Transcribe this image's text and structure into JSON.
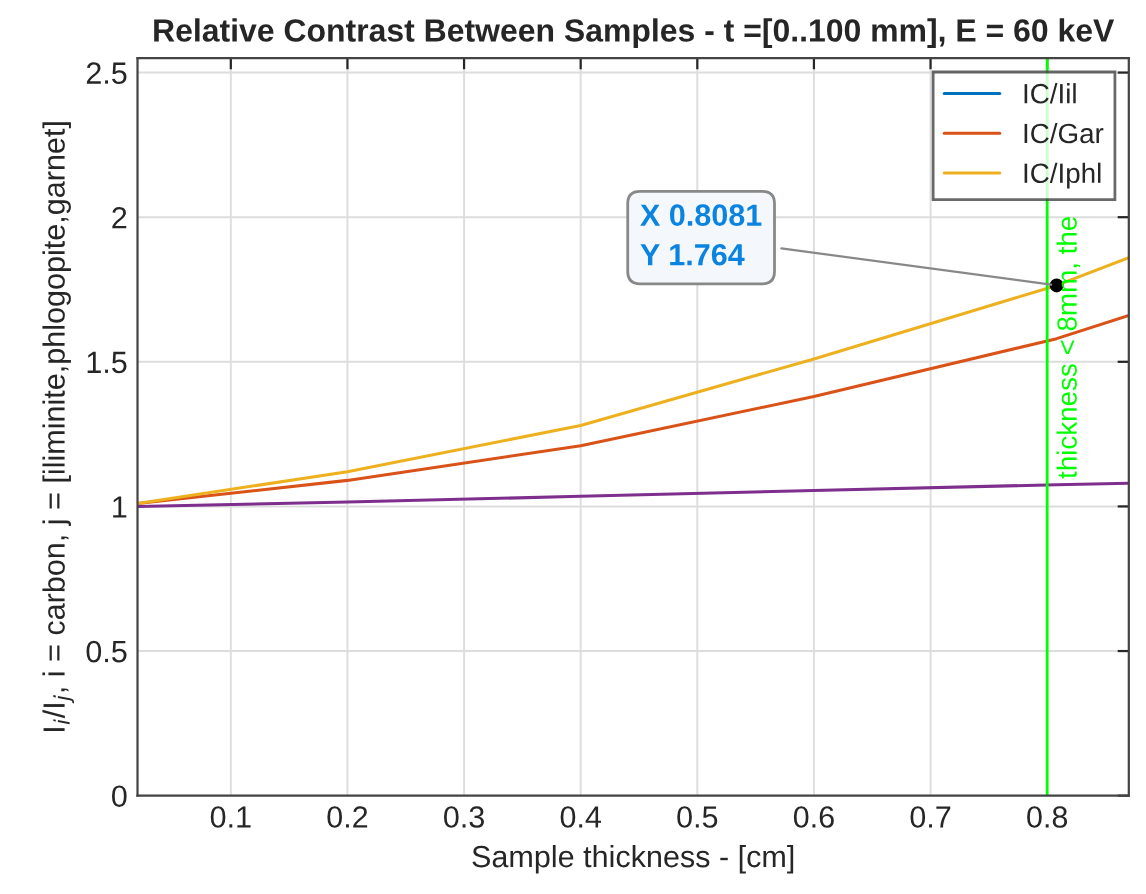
{
  "chart_data": {
    "type": "line",
    "title": "Relative Contrast Between Samples - t =[0..100 mm], E = 60 keV",
    "xlabel": "Sample thickness - [cm]",
    "ylabel": "I$_{i}$/I$_{j}$, i = carbon, j = [iliminite,phlogopite,garnet]",
    "x": [
      0.02,
      0.2,
      0.4,
      0.6,
      0.8081,
      0.87
    ],
    "series": [
      {
        "name": "IC/Iil",
        "color": "#0072bd",
        "values": [
          null,
          null,
          null,
          null,
          null,
          null
        ]
      },
      {
        "name": "IC/Gar",
        "color": "#d95319",
        "values": [
          1.01,
          1.09,
          1.21,
          1.38,
          1.58,
          1.66
        ]
      },
      {
        "name": "IC/Iphl",
        "color": "#edb120",
        "values": [
          1.01,
          1.12,
          1.28,
          1.51,
          1.764,
          1.86
        ]
      },
      {
        "color": "#7e2f8e",
        "values": [
          1.0,
          1.015,
          1.035,
          1.055,
          1.075,
          1.08
        ]
      }
    ],
    "xlim": [
      0.02,
      0.87
    ],
    "xticks": [
      0.1,
      0.2,
      0.3,
      0.4,
      0.5,
      0.6,
      0.7,
      0.8
    ],
    "ylim": [
      0,
      2.55
    ],
    "yticks": [
      0,
      0.5,
      1,
      1.5,
      2,
      2.5
    ],
    "ref_lines": [
      {
        "axis": "x",
        "value": 0.8,
        "label": "thickness < 8mm, the",
        "color": "#00ff00"
      }
    ],
    "annotations": [
      {
        "text": "X 0.8081\nY 1.764",
        "x": 0.8081,
        "y": 1.764
      }
    ],
    "grid": true,
    "legend": "top right",
    "marker": "none",
    "line_style": "solid"
  }
}
